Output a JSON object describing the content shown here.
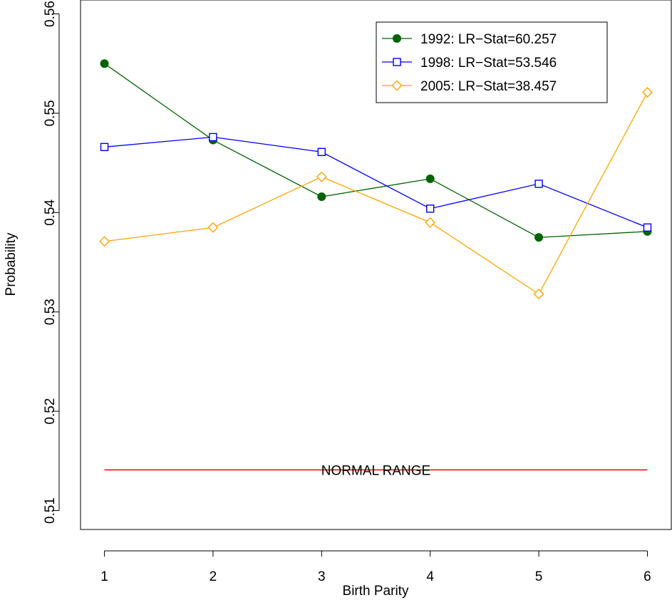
{
  "chart_data": {
    "type": "line",
    "title": "",
    "xlabel": "Birth Parity",
    "ylabel": "Probability",
    "x": [
      1,
      2,
      3,
      4,
      5,
      6
    ],
    "x_ticks": [
      "1",
      "2",
      "3",
      "4",
      "5",
      "6"
    ],
    "y_ticks": [
      "0.51",
      "0.52",
      "0.53",
      "0.54",
      "0.55",
      "0.56"
    ],
    "xlim": [
      0.78,
      6.22
    ],
    "ylim": [
      0.5081,
      0.5614
    ],
    "grid": false,
    "legend_position": "top-right",
    "series": [
      {
        "name": "1992: LR−Stat=60.257",
        "color": "#006400",
        "marker": "filled-circle",
        "values": [
          0.555,
          0.5473,
          0.5416,
          0.5434,
          0.5375,
          0.5381
        ]
      },
      {
        "name": "1998: LR−Stat=53.546",
        "color": "#0000ff",
        "marker": "open-square",
        "values": [
          0.5466,
          0.5476,
          0.5461,
          0.5404,
          0.5429,
          0.5385
        ]
      },
      {
        "name": "2005: LR−Stat=38.457",
        "color": "#ffa500",
        "marker": "open-diamond",
        "values": [
          0.5371,
          0.5385,
          0.5436,
          0.539,
          0.5318,
          0.5521
        ]
      }
    ],
    "reference_line": {
      "label": "NORMAL RANGE",
      "value": 0.5141,
      "color": "#ff0000"
    }
  }
}
